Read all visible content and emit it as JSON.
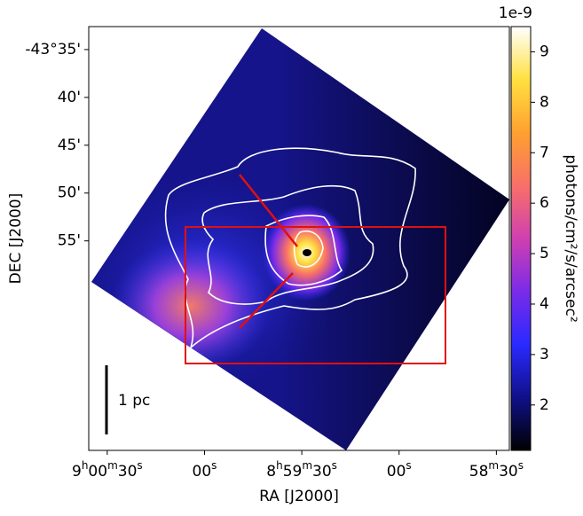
{
  "chart_data": {
    "type": "image",
    "xlabel": "RA [J2000]",
    "ylabel": "DEC [J2000]",
    "xlim": [
      32435.7,
      32306
    ],
    "xticks": [
      {
        "value": 32430,
        "label": "9h00m30s"
      },
      {
        "value": 32400,
        "label": "00s"
      },
      {
        "value": 32370,
        "label": "8h59m30s"
      },
      {
        "value": 32340,
        "label": "00s"
      },
      {
        "value": 32310,
        "label": "58m30s"
      }
    ],
    "ylim": [
      -2656.9,
      -2612.6
    ],
    "yticks": [
      {
        "value": -2615,
        "label": "-43°35'"
      },
      {
        "value": -2620,
        "label": "40'"
      },
      {
        "value": -2625,
        "label": "45'"
      },
      {
        "value": -2630,
        "label": "50'"
      },
      {
        "value": -2635,
        "label": "55'"
      }
    ],
    "colorbar": {
      "label": "photons/cm²/s/arcsec²",
      "offset_label": "1e-9",
      "lim": [
        1.1,
        9.5
      ],
      "ticks": [
        2,
        3,
        4,
        5,
        6,
        7,
        8,
        9
      ],
      "colormap": [
        "#000000",
        "#10108a",
        "#2a2aff",
        "#7a2be8",
        "#d040b0",
        "#f87068",
        "#ffa030",
        "#ffe040",
        "#ffffff"
      ]
    },
    "annotations": {
      "scale_bar": "1 pc"
    }
  }
}
